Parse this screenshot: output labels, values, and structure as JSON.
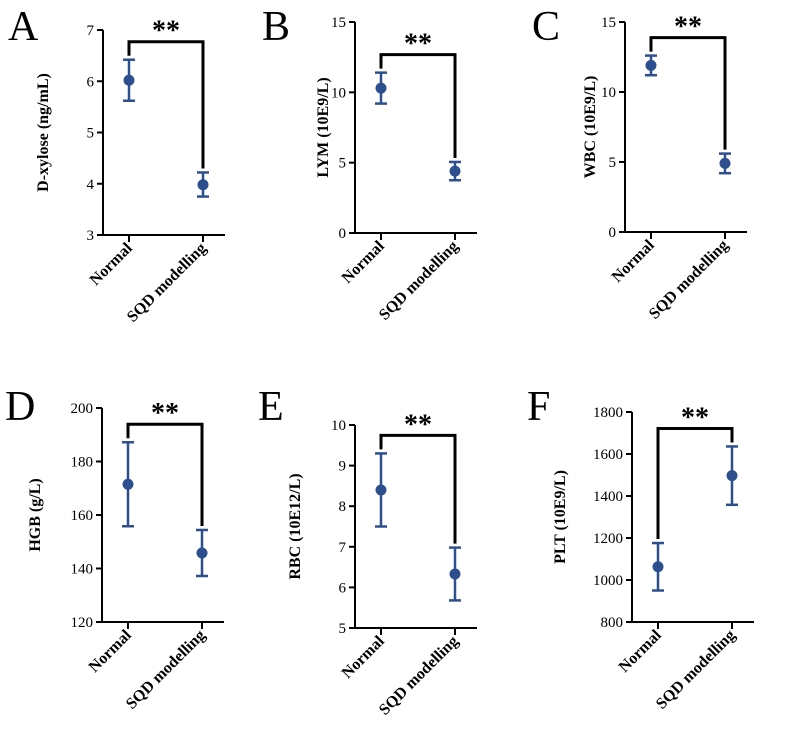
{
  "chart_data": [
    {
      "panel": "A",
      "type": "scatter",
      "categories": [
        "Normal",
        "SQD modelling"
      ],
      "ylabel": "D-xylose (ng/mL)",
      "ylim": [
        3,
        7
      ],
      "yticks": [
        3,
        4,
        5,
        6,
        7
      ],
      "means": [
        6.02,
        3.98
      ],
      "errors": [
        [
          5.62,
          6.42
        ],
        [
          3.75,
          4.22
        ]
      ],
      "significance": "**",
      "color": "#2d4f8e"
    },
    {
      "panel": "B",
      "type": "scatter",
      "categories": [
        "Normal",
        "SQD modelling"
      ],
      "ylabel": "LYM (10E9/L)",
      "ylim": [
        0,
        15
      ],
      "yticks": [
        0,
        5,
        10,
        15
      ],
      "means": [
        10.3,
        4.4
      ],
      "errors": [
        [
          9.2,
          11.4
        ],
        [
          3.75,
          5.05
        ]
      ],
      "significance": "**",
      "color": "#2d4f8e"
    },
    {
      "panel": "C",
      "type": "scatter",
      "categories": [
        "Normal",
        "SQD modelling"
      ],
      "ylabel": "WBC (10E9/L)",
      "ylim": [
        0,
        15
      ],
      "yticks": [
        0,
        5,
        10,
        15
      ],
      "means": [
        11.9,
        4.9
      ],
      "errors": [
        [
          11.2,
          12.6
        ],
        [
          4.2,
          5.6
        ]
      ],
      "significance": "**",
      "color": "#2d4f8e"
    },
    {
      "panel": "D",
      "type": "scatter",
      "categories": [
        "Normal",
        "SQD modelling"
      ],
      "ylabel": "HGB (g/L)",
      "ylim": [
        120,
        200
      ],
      "yticks": [
        120,
        140,
        160,
        180,
        200
      ],
      "means": [
        171.5,
        145.8
      ],
      "errors": [
        [
          155.8,
          187.2
        ],
        [
          137.2,
          154.4
        ]
      ],
      "significance": "**",
      "color": "#2d4f8e"
    },
    {
      "panel": "E",
      "type": "scatter",
      "categories": [
        "Normal",
        "SQD modelling"
      ],
      "ylabel": "RBC (10E12/L)",
      "ylim": [
        5,
        10
      ],
      "yticks": [
        5,
        6,
        7,
        8,
        9,
        10
      ],
      "means": [
        8.4,
        6.33
      ],
      "errors": [
        [
          7.5,
          9.3
        ],
        [
          5.68,
          6.98
        ]
      ],
      "significance": "**",
      "color": "#2d4f8e"
    },
    {
      "panel": "F",
      "type": "scatter",
      "categories": [
        "Normal",
        "SQD modelling"
      ],
      "ylabel": "PLT (10E9/L)",
      "ylim": [
        800,
        1800
      ],
      "yticks": [
        800,
        1000,
        1200,
        1400,
        1600,
        1800
      ],
      "means": [
        1063,
        1497
      ],
      "errors": [
        [
          950,
          1176
        ],
        [
          1358,
          1636
        ]
      ],
      "significance": "**",
      "color": "#2d4f8e"
    }
  ]
}
